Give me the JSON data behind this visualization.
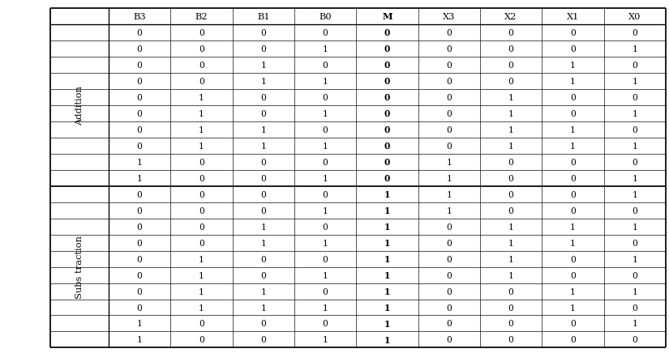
{
  "headers": [
    "B3",
    "B2",
    "B1",
    "B0",
    "M",
    "X3",
    "X2",
    "X1",
    "X0"
  ],
  "addition_rows": [
    [
      0,
      0,
      0,
      0,
      0,
      0,
      0,
      0,
      0
    ],
    [
      0,
      0,
      0,
      1,
      0,
      0,
      0,
      0,
      1
    ],
    [
      0,
      0,
      1,
      0,
      0,
      0,
      0,
      1,
      0
    ],
    [
      0,
      0,
      1,
      1,
      0,
      0,
      0,
      1,
      1
    ],
    [
      0,
      1,
      0,
      0,
      0,
      0,
      1,
      0,
      0
    ],
    [
      0,
      1,
      0,
      1,
      0,
      0,
      1,
      0,
      1
    ],
    [
      0,
      1,
      1,
      0,
      0,
      0,
      1,
      1,
      0
    ],
    [
      0,
      1,
      1,
      1,
      0,
      0,
      1,
      1,
      1
    ],
    [
      1,
      0,
      0,
      0,
      0,
      1,
      0,
      0,
      0
    ],
    [
      1,
      0,
      0,
      1,
      0,
      1,
      0,
      0,
      1
    ]
  ],
  "subtraction_rows": [
    [
      0,
      0,
      0,
      0,
      1,
      1,
      0,
      0,
      1
    ],
    [
      0,
      0,
      0,
      1,
      1,
      1,
      0,
      0,
      0
    ],
    [
      0,
      0,
      1,
      0,
      1,
      0,
      1,
      1,
      1
    ],
    [
      0,
      0,
      1,
      1,
      1,
      0,
      1,
      1,
      0
    ],
    [
      0,
      1,
      0,
      0,
      1,
      0,
      1,
      0,
      1
    ],
    [
      0,
      1,
      0,
      1,
      1,
      0,
      1,
      0,
      0
    ],
    [
      0,
      1,
      1,
      0,
      1,
      0,
      0,
      1,
      1
    ],
    [
      0,
      1,
      1,
      1,
      1,
      0,
      0,
      1,
      0
    ],
    [
      1,
      0,
      0,
      0,
      1,
      0,
      0,
      0,
      1
    ],
    [
      1,
      0,
      0,
      1,
      1,
      0,
      0,
      0,
      0
    ]
  ],
  "addition_label": "Addition",
  "subtraction_label": "Subs traction",
  "bg_color": "#ffffff",
  "line_color": "#000000",
  "text_color": "#000000",
  "bold_col_index": 4,
  "fig_width": 8.59375,
  "fig_height": 4.552083,
  "dpi": 96,
  "font_family": "DejaVu Serif",
  "header_fontsize": 8.5,
  "cell_fontsize": 8.0,
  "label_fontsize": 8.5
}
